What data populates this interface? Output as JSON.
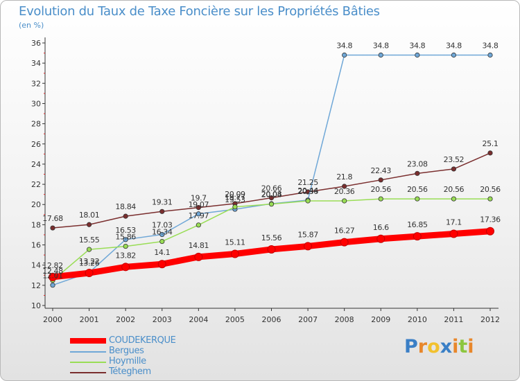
{
  "header": {
    "title": "Evolution du Taux de Taxe Foncière sur les Propriétés Bâties",
    "unit": "(en %)"
  },
  "chart_data": {
    "type": "line",
    "x": [
      "2000",
      "2001",
      "2002",
      "2003",
      "2004",
      "2005",
      "2006",
      "2007",
      "2008",
      "2009",
      "2010",
      "2011",
      "2012"
    ],
    "ylim": [
      10,
      36
    ],
    "yticks": [
      10,
      12,
      14,
      16,
      18,
      20,
      22,
      24,
      26,
      28,
      30,
      32,
      34,
      36
    ],
    "grid": false,
    "legend_position": "bottom-left",
    "series": [
      {
        "name": "COUDEKERQUE",
        "color": "#ff0000",
        "values": [
          12.82,
          13.22,
          13.82,
          14.1,
          14.81,
          15.11,
          15.56,
          15.87,
          16.27,
          16.6,
          16.85,
          17.1,
          17.36
        ],
        "labels": [
          "12.82",
          "13.22",
          "13.82",
          "14.1",
          "14.81",
          "15.11",
          "15.56",
          "15.87",
          "16.27",
          "16.6",
          "16.85",
          "17.1",
          "17.36"
        ]
      },
      {
        "name": "Bergues",
        "color": "#6fa7d7",
        "values": [
          12.01,
          13.26,
          16.53,
          17.03,
          19.07,
          19.53,
          20.08,
          20.44,
          34.8,
          34.8,
          34.8,
          34.8,
          34.8
        ],
        "labels": [
          "12.01",
          "13.26",
          "16.53",
          "17.03",
          "19.07",
          "19.53",
          "20.08",
          "20.44",
          "34.8",
          "34.8",
          "34.8",
          "34.8",
          "34.8"
        ]
      },
      {
        "name": "Hoymille",
        "color": "#99dd55",
        "values": [
          12.48,
          15.55,
          15.86,
          16.34,
          17.97,
          19.77,
          20.04,
          20.36,
          20.36,
          20.56,
          20.56,
          20.56,
          20.56
        ],
        "labels": [
          "12.48",
          "15.55",
          "15.86",
          "16.34",
          "17.97",
          "19.77",
          "20.04",
          "20.36",
          "20.36",
          "20.56",
          "20.56",
          "20.56",
          "20.56"
        ]
      },
      {
        "name": "Téteghem",
        "color": "#7a2e2e",
        "values": [
          17.68,
          18.01,
          18.84,
          19.31,
          19.7,
          20.09,
          20.66,
          21.25,
          21.8,
          22.43,
          23.08,
          23.52,
          25.1
        ],
        "labels": [
          "17.68",
          "18.01",
          "18.84",
          "19.31",
          "19.7",
          "20.09",
          "20.66",
          "21.25",
          "21.8",
          "22.43",
          "23.08",
          "23.52",
          "25.1"
        ]
      }
    ]
  },
  "legend": {
    "items": [
      {
        "label": "COUDEKERQUE",
        "color": "#ff0000"
      },
      {
        "label": "Bergues",
        "color": "#6fa7d7"
      },
      {
        "label": "Hoymille",
        "color": "#99dd55"
      },
      {
        "label": "Téteghem",
        "color": "#7a2e2e"
      }
    ]
  },
  "logo": {
    "letters": [
      {
        "char": "P",
        "color": "#3a7fc6"
      },
      {
        "char": "r",
        "color": "#e8872b"
      },
      {
        "char": "o",
        "color": "#f2c12e"
      },
      {
        "char": "x",
        "color": "#3a7fc6"
      },
      {
        "char": "i",
        "color": "#e8872b"
      },
      {
        "char": "t",
        "color": "#8cc63f"
      },
      {
        "char": "i",
        "color": "#e8872b"
      }
    ]
  }
}
